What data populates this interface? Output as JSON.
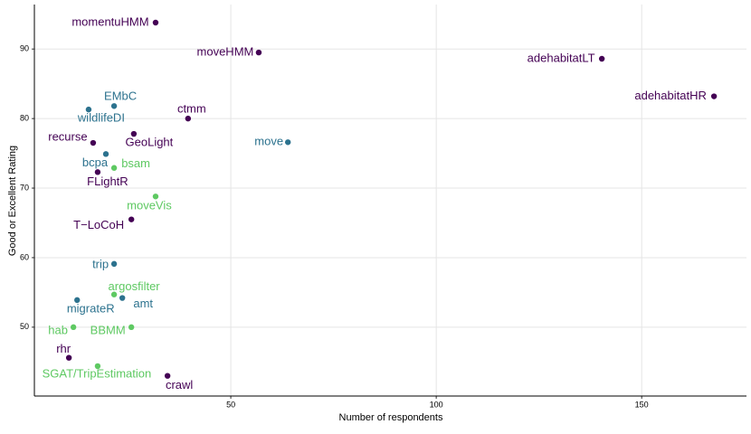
{
  "chart_data": {
    "type": "scatter",
    "x_label": "Number of respondents",
    "y_label": "Good or Excellent Rating",
    "labels": [
      "momentuHMM",
      "moveHMM",
      "adehabitatLT",
      "adehabitatHR",
      "EMbC",
      "wildlifeDI",
      "ctmm",
      "move",
      "recurse",
      "GeoLight",
      "bcpa",
      "bsam",
      "FLightR",
      "moveVis",
      "T−LoCoH",
      "trip",
      "argosfilter",
      "amt",
      "migrateR",
      "hab",
      "BBMM",
      "rhr",
      "SGAT/TripEstimation",
      "crawl"
    ],
    "x": [
      31.7,
      56.8,
      140.3,
      167.6,
      21.6,
      15.4,
      39.6,
      63.9,
      16.5,
      26.4,
      19.6,
      21.6,
      17.6,
      31.7,
      25.8,
      21.6,
      21.6,
      23.6,
      12.6,
      11.7,
      25.8,
      10.6,
      17.6,
      34.6
    ],
    "y": [
      93.8,
      89.5,
      88.6,
      83.2,
      81.8,
      81.3,
      80.0,
      76.6,
      76.5,
      77.8,
      74.9,
      72.9,
      72.3,
      68.8,
      65.5,
      59.1,
      54.7,
      54.2,
      53.9,
      50.0,
      50.0,
      45.6,
      44.4,
      43.0
    ],
    "colors": [
      "#440154",
      "#440154",
      "#440154",
      "#440154",
      "#2c728e",
      "#2c728e",
      "#440154",
      "#2c728e",
      "#440154",
      "#440154",
      "#2c728e",
      "#5ec962",
      "#440154",
      "#5ec962",
      "#440154",
      "#2c728e",
      "#5ec962",
      "#2c728e",
      "#2c728e",
      "#5ec962",
      "#5ec962",
      "#440154",
      "#5ec962",
      "#440154"
    ],
    "xlim": [
      2.2,
      175.5
    ],
    "xticks": [
      50,
      100,
      150
    ],
    "ylim": [
      40.1,
      96.4
    ],
    "yticks": [
      50,
      60,
      70,
      80,
      90
    ],
    "grid": true
  }
}
